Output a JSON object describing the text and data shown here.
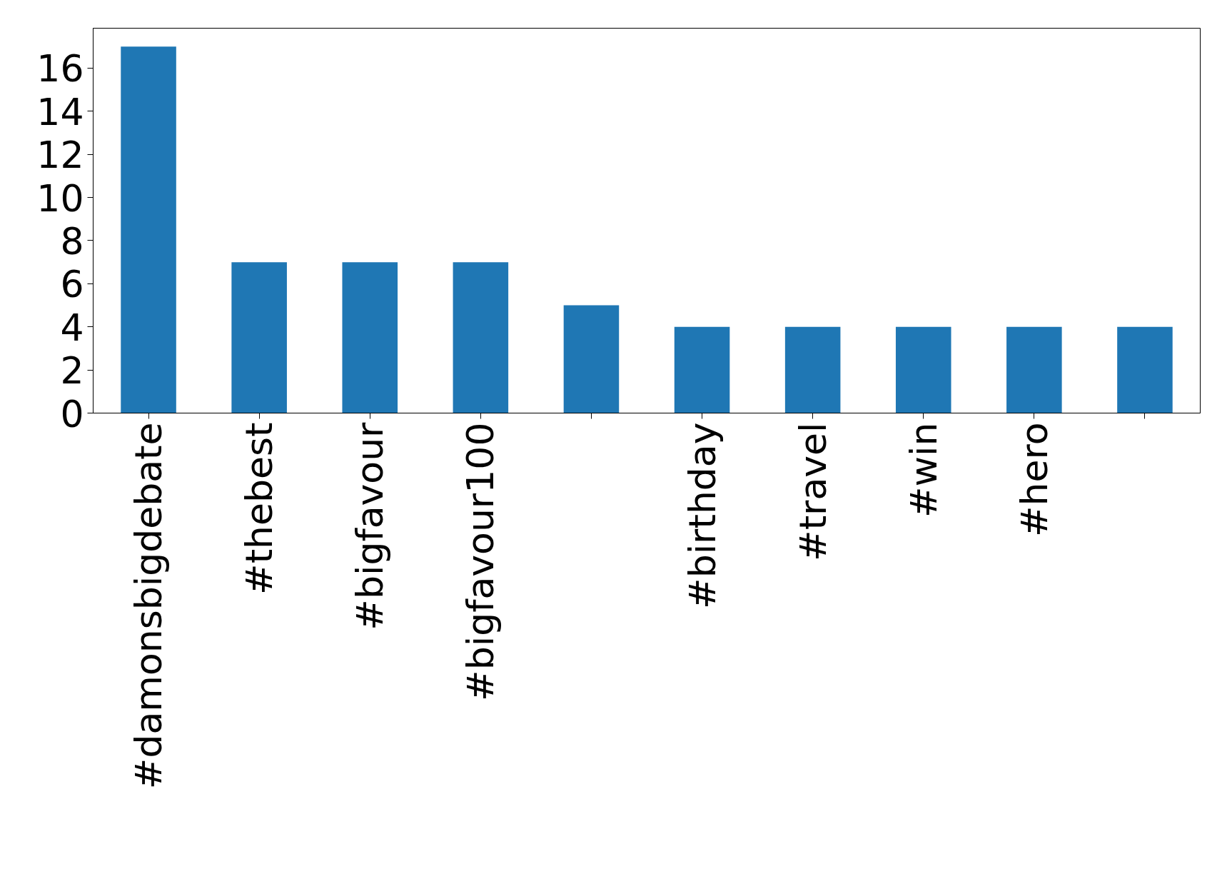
{
  "chart_data": {
    "type": "bar",
    "categories": [
      "#damonsbigdebate",
      "#thebest",
      "#bigfavour",
      "#bigfavour100",
      null,
      "#birthday",
      "#travel",
      "#win",
      "#hero",
      null
    ],
    "values": [
      17,
      7,
      7,
      7,
      5,
      4,
      4,
      4,
      4,
      4
    ],
    "color": "#1f77b4",
    "ylim": [
      0,
      17.85
    ],
    "yticks": [
      0,
      2,
      4,
      6,
      8,
      10,
      12,
      14,
      16
    ]
  }
}
